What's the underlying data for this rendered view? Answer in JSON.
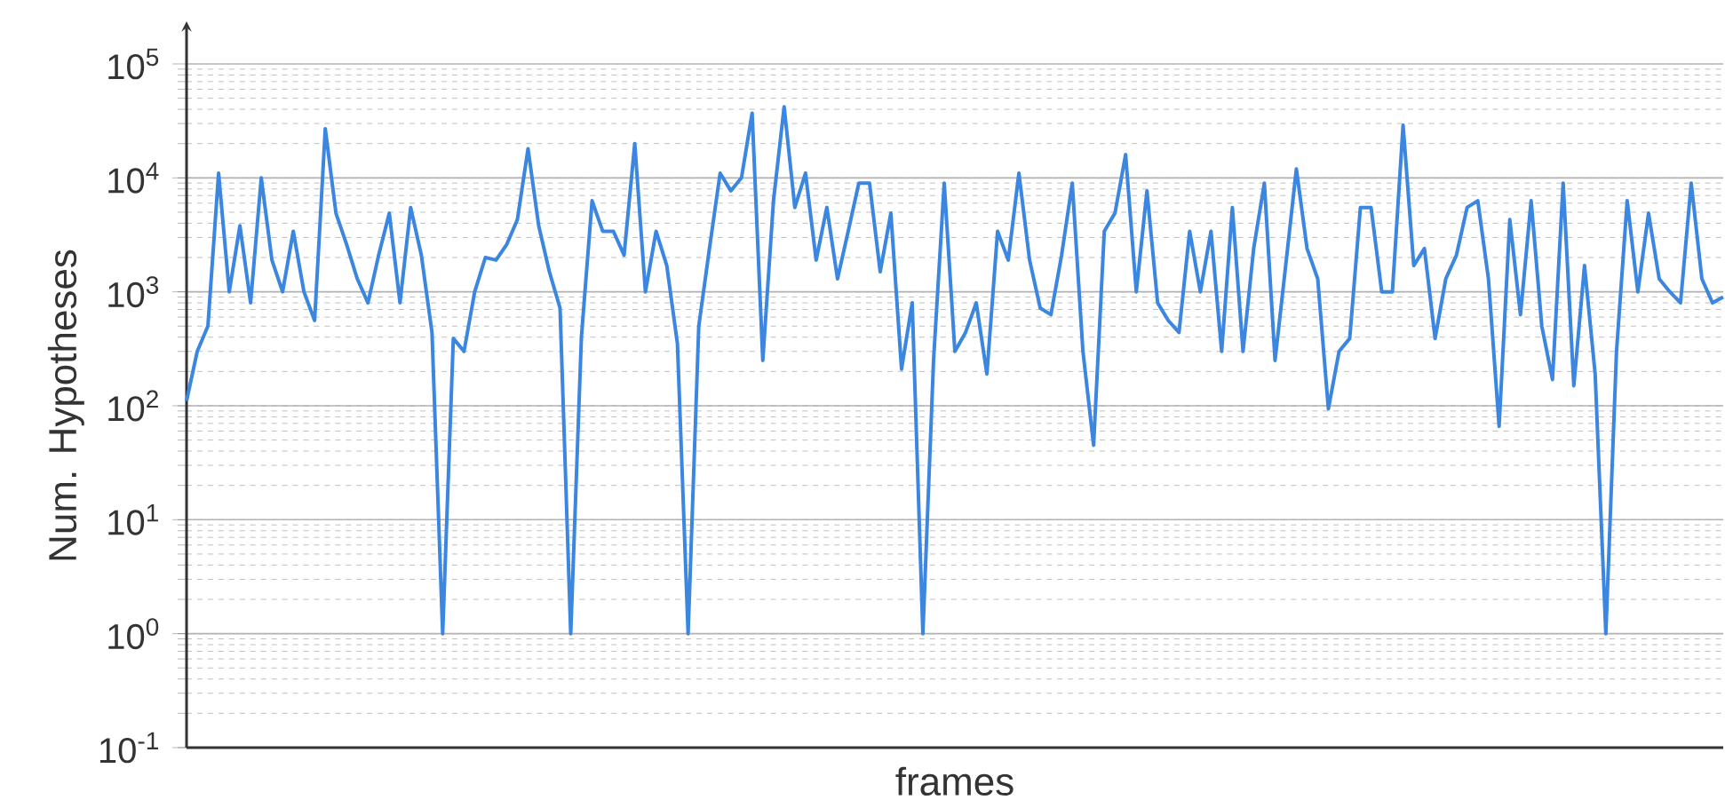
{
  "chart_data": {
    "type": "line",
    "xlabel": "frames",
    "ylabel": "Num. Hypotheses",
    "categories": [
      null,
      null,
      null,
      null,
      null,
      null,
      null,
      null,
      null,
      null,
      null,
      null,
      null,
      null,
      null,
      null,
      null,
      null,
      null,
      null,
      null,
      null,
      null,
      null,
      null,
      null,
      null,
      null,
      null,
      null,
      null,
      null,
      null,
      null,
      null,
      null,
      null,
      null,
      null,
      null,
      null,
      null,
      null,
      null,
      null,
      null,
      null,
      null,
      null,
      null,
      null,
      null,
      null,
      null,
      null,
      null,
      null,
      null,
      null,
      null,
      null,
      null,
      null,
      null,
      null,
      null,
      null,
      null,
      null,
      null,
      null,
      null,
      null,
      null,
      null,
      null,
      null,
      null,
      null,
      null,
      null,
      null,
      null,
      null,
      null,
      null,
      null,
      null,
      null,
      null,
      null,
      null,
      null,
      null,
      null,
      null,
      null,
      null,
      null,
      null,
      null,
      null,
      null,
      null,
      null,
      null,
      null,
      null,
      null,
      null,
      null,
      null,
      null,
      null,
      null,
      null,
      null,
      null,
      null,
      null,
      null,
      null,
      null,
      null,
      null,
      null,
      null,
      null,
      null,
      null,
      null,
      null,
      null,
      null,
      null,
      null,
      null,
      null,
      null,
      null,
      null,
      null,
      null,
      null,
      null
    ],
    "series": [
      {
        "color": "#3a86e0",
        "values": [
          110,
          300,
          500,
          11000,
          1000,
          3800,
          800,
          10000,
          1900,
          1000,
          3400,
          1000,
          560,
          27000,
          4900,
          2600,
          1300,
          800,
          2100,
          4900,
          800,
          5500,
          2100,
          440,
          1,
          390,
          300,
          1000,
          2000,
          1900,
          2600,
          4300,
          18000,
          3800,
          1500,
          720,
          1,
          400,
          6300,
          3400,
          3400,
          2100,
          20000,
          1000,
          3400,
          1700,
          350,
          1,
          500,
          2400,
          11000,
          7700,
          10000,
          37000,
          250,
          6300,
          42000,
          5500,
          11000,
          1900,
          5500,
          1300,
          3400,
          9000,
          9000,
          1500,
          4900,
          210,
          800,
          1,
          250,
          9000,
          300,
          440,
          800,
          190,
          3400,
          1900,
          11000,
          1900,
          720,
          630,
          2100,
          9000,
          300,
          45,
          3400,
          4900,
          16000,
          1000,
          7700,
          800,
          560,
          440,
          3400,
          1000,
          3400,
          300,
          5500,
          300,
          2400,
          9000,
          250,
          1700,
          12000,
          2400,
          1300,
          94,
          300,
          390,
          5500,
          5500,
          1000,
          1000,
          29000,
          1700,
          2400,
          390,
          1300,
          2100,
          5500,
          6300,
          1300,
          66,
          4300,
          630,
          6300,
          500,
          170,
          9000,
          150,
          1700,
          190,
          1,
          300,
          6300,
          1000,
          4900,
          1300,
          1000,
          800,
          9000,
          1300,
          800,
          900
        ]
      }
    ],
    "log": "y",
    "ylim": [
      0.1,
      100000
    ],
    "yticks": [
      {
        "value": 0.1,
        "label": "10$^{-1}$"
      },
      {
        "value": 1,
        "label": "10$^{0}$"
      },
      {
        "value": 10,
        "label": "10$^{1}$"
      },
      {
        "value": 100,
        "label": "10$^{2}$"
      },
      {
        "value": 1000,
        "label": "10$^{3}$"
      },
      {
        "value": 10000,
        "label": "10$^{4}$"
      },
      {
        "value": 100000,
        "label": "10$^{5}$"
      }
    ],
    "grid": "y",
    "line_style": "solid",
    "marker": "none"
  }
}
